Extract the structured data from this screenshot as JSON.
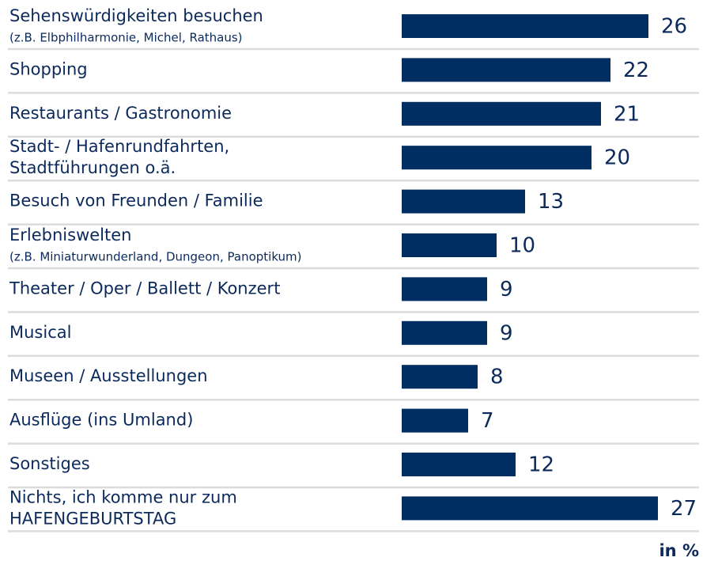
{
  "chart_data": {
    "type": "bar",
    "orientation": "horizontal",
    "categories": [
      [
        "Sehenswürdigkeiten besuchen"
      ],
      [
        "Shopping"
      ],
      [
        "Restaurants / Gastronomie"
      ],
      [
        "Stadt- / Hafenrundfahrten,",
        "Stadtführungen o.ä."
      ],
      [
        "Besuch von Freunden / Familie"
      ],
      [
        "Erlebniswelten"
      ],
      [
        "Theater / Oper / Ballett / Konzert"
      ],
      [
        "Musical"
      ],
      [
        "Museen / Ausstellungen"
      ],
      [
        "Ausflüge (ins Umland)"
      ],
      [
        "Sonstiges"
      ],
      [
        "Nichts, ich komme nur zum",
        "HAFENGEBURTSTAG"
      ]
    ],
    "category_notes": [
      "(z.B. Elbphilharmonie, Michel, Rathaus)",
      null,
      null,
      null,
      null,
      "(z.B. Miniaturwunderland, Dungeon, Panoptikum)",
      null,
      null,
      null,
      null,
      null,
      null
    ],
    "values": [
      26,
      22,
      21,
      20,
      13,
      10,
      9,
      9,
      8,
      7,
      12,
      27
    ],
    "color": "#002d62",
    "unit_label": "in %"
  }
}
